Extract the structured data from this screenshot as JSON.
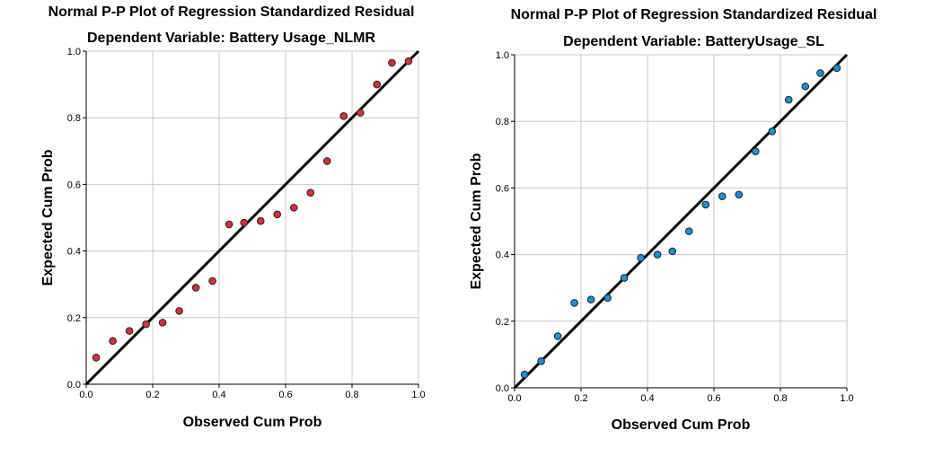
{
  "chart_data": [
    {
      "type": "scatter",
      "title": "Normal P-P Plot of Regression Standardized Residual",
      "subtitle": "Dependent Variable: Battery Usage_NLMR",
      "xlabel": "Observed Cum Prob",
      "ylabel": "Expected Cum Prob",
      "xlim": [
        0.0,
        1.0
      ],
      "ylim": [
        0.0,
        1.0
      ],
      "xticks": [
        "0.0",
        "0.2",
        "0.4",
        "0.6",
        "0.8",
        "1.0"
      ],
      "yticks": [
        "0.0",
        "0.2",
        "0.4",
        "0.6",
        "0.8",
        "1.0"
      ],
      "grid": true,
      "reference_line": [
        [
          0,
          0
        ],
        [
          1,
          1
        ]
      ],
      "point_color": "#d1323b",
      "points": [
        {
          "x": 0.03,
          "y": 0.08
        },
        {
          "x": 0.08,
          "y": 0.13
        },
        {
          "x": 0.13,
          "y": 0.16
        },
        {
          "x": 0.18,
          "y": 0.18
        },
        {
          "x": 0.23,
          "y": 0.185
        },
        {
          "x": 0.28,
          "y": 0.22
        },
        {
          "x": 0.33,
          "y": 0.29
        },
        {
          "x": 0.38,
          "y": 0.31
        },
        {
          "x": 0.43,
          "y": 0.48
        },
        {
          "x": 0.475,
          "y": 0.485
        },
        {
          "x": 0.525,
          "y": 0.49
        },
        {
          "x": 0.575,
          "y": 0.51
        },
        {
          "x": 0.625,
          "y": 0.53
        },
        {
          "x": 0.675,
          "y": 0.575
        },
        {
          "x": 0.725,
          "y": 0.67
        },
        {
          "x": 0.775,
          "y": 0.805
        },
        {
          "x": 0.825,
          "y": 0.815
        },
        {
          "x": 0.875,
          "y": 0.9
        },
        {
          "x": 0.92,
          "y": 0.965
        },
        {
          "x": 0.97,
          "y": 0.97
        }
      ]
    },
    {
      "type": "scatter",
      "title": "Normal P-P Plot of Regression Standardized Residual",
      "subtitle": "Dependent Variable: BatteryUsage_SL",
      "xlabel": "Observed Cum Prob",
      "ylabel": "Expected Cum Prob",
      "xlim": [
        0.0,
        1.0
      ],
      "ylim": [
        0.0,
        1.0
      ],
      "xticks": [
        "0.0",
        "0.2",
        "0.4",
        "0.6",
        "0.8",
        "1.0"
      ],
      "yticks": [
        "0.0",
        "0.2",
        "0.4",
        "0.6",
        "0.8",
        "1.0"
      ],
      "grid": true,
      "reference_line": [
        [
          0,
          0
        ],
        [
          1,
          1
        ]
      ],
      "point_color": "#1f8fcf",
      "points": [
        {
          "x": 0.03,
          "y": 0.04
        },
        {
          "x": 0.08,
          "y": 0.08
        },
        {
          "x": 0.13,
          "y": 0.155
        },
        {
          "x": 0.18,
          "y": 0.255
        },
        {
          "x": 0.23,
          "y": 0.265
        },
        {
          "x": 0.28,
          "y": 0.27
        },
        {
          "x": 0.33,
          "y": 0.33
        },
        {
          "x": 0.38,
          "y": 0.39
        },
        {
          "x": 0.43,
          "y": 0.4
        },
        {
          "x": 0.475,
          "y": 0.41
        },
        {
          "x": 0.525,
          "y": 0.47
        },
        {
          "x": 0.575,
          "y": 0.55
        },
        {
          "x": 0.625,
          "y": 0.575
        },
        {
          "x": 0.675,
          "y": 0.58
        },
        {
          "x": 0.725,
          "y": 0.71
        },
        {
          "x": 0.775,
          "y": 0.77
        },
        {
          "x": 0.825,
          "y": 0.865
        },
        {
          "x": 0.875,
          "y": 0.905
        },
        {
          "x": 0.92,
          "y": 0.945
        },
        {
          "x": 0.97,
          "y": 0.96
        }
      ]
    }
  ]
}
